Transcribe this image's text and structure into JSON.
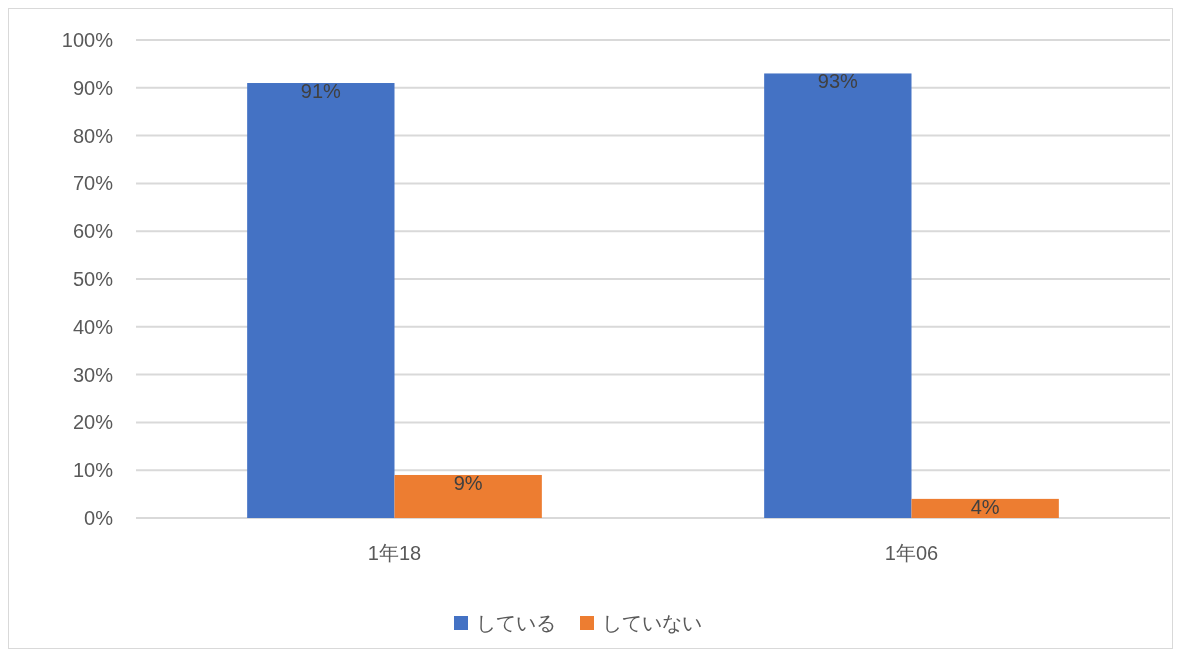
{
  "chart_data": {
    "type": "bar",
    "categories": [
      "1年18",
      "1年06"
    ],
    "series": [
      {
        "name": "している",
        "color": "#4472c4",
        "values": [
          91,
          93
        ],
        "value_labels": [
          "91%",
          "93%"
        ]
      },
      {
        "name": "していない",
        "color": "#ed7d31",
        "values": [
          9,
          4
        ],
        "value_labels": [
          "9%",
          "4%"
        ]
      }
    ],
    "ylim": [
      0,
      100
    ],
    "yticks": [
      {
        "value": 0,
        "label": "0%"
      },
      {
        "value": 10,
        "label": "10%"
      },
      {
        "value": 20,
        "label": "20%"
      },
      {
        "value": 30,
        "label": "30%"
      },
      {
        "value": 40,
        "label": "40%"
      },
      {
        "value": 50,
        "label": "50%"
      },
      {
        "value": 60,
        "label": "60%"
      },
      {
        "value": 70,
        "label": "70%"
      },
      {
        "value": 80,
        "label": "80%"
      },
      {
        "value": 90,
        "label": "90%"
      },
      {
        "value": 100,
        "label": "100%"
      }
    ],
    "grid": "y",
    "legend": "bottom"
  }
}
